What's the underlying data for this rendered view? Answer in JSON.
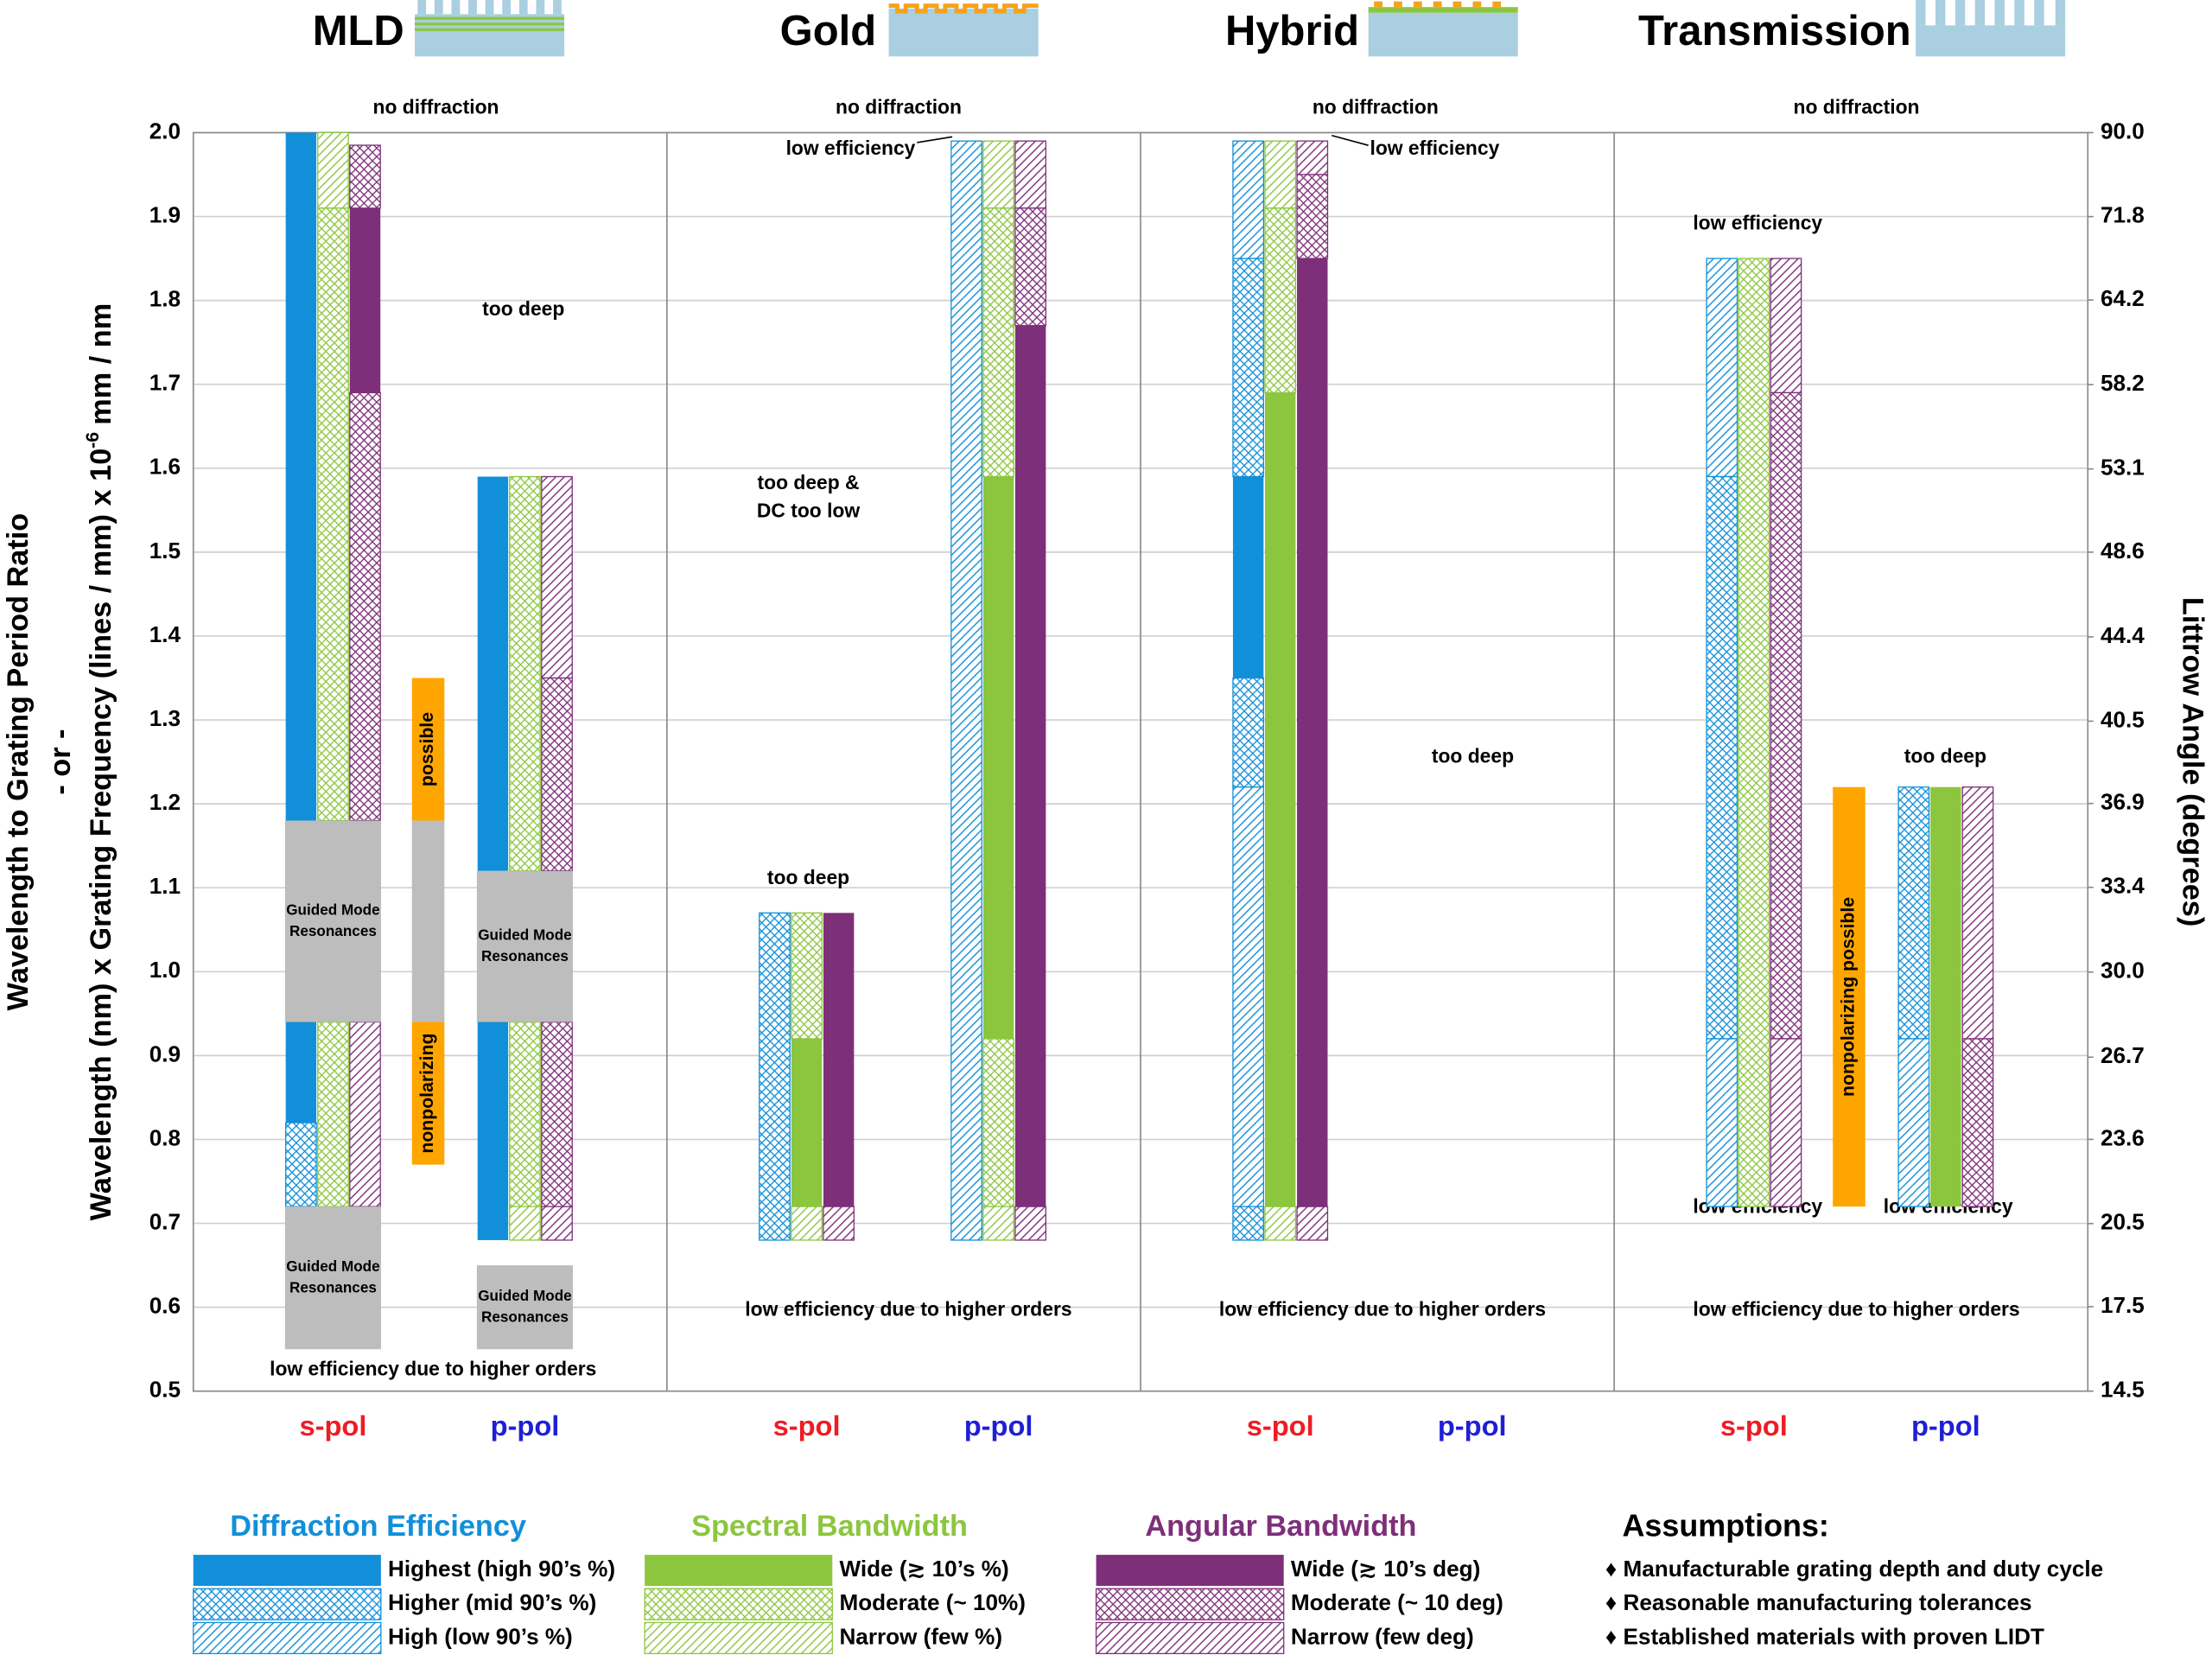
{
  "chart_data": {
    "type": "range_bar",
    "ylabel_lines": [
      "Wavelength to Grating Period Ratio",
      "- or -"
    ],
    "ylabel_formula": {
      "base": "Wavelength (nm) x Grating Frequency (lines / mm) x 10",
      "exponent": "-6",
      "unit": "mm / nm"
    },
    "y2label": "Littrow Angle (degrees)",
    "ylim": [
      0.5,
      2.0
    ],
    "yticks": [
      0.5,
      0.6,
      0.7,
      0.8,
      0.9,
      {
        "value": 1,
        "label": "1.0"
      },
      1.1,
      1.2,
      1.3,
      1.4,
      1.5,
      1.6,
      1.7,
      1.8,
      1.9,
      {
        "value": 2,
        "label": "2.0"
      }
    ],
    "y2scale": "sine",
    "y2lim": [
      14.5,
      90
    ],
    "y2ticks": [
      {
        "value": 90,
        "label": "90.0"
      },
      71.8,
      64.2,
      58.2,
      53.1,
      48.6,
      44.4,
      40.5,
      36.9,
      33.4,
      {
        "value": 30,
        "label": "30.0"
      },
      26.7,
      23.6,
      20.5,
      17.5,
      14.5
    ],
    "grid": true,
    "box_color": "#bdbdbd",
    "metrics": [
      {
        "name": "Diffraction Efficiency",
        "color": "#128fd9",
        "levels": [
          "Highest (high 90’s %)",
          "Higher (mid 90’s %)",
          "High (low 90’s %)"
        ]
      },
      {
        "name": "Spectral Bandwidth",
        "color": "#8cc63f",
        "levels": [
          "Wide (≳ 10’s %)",
          "Moderate (~ 10%)",
          "Narrow (few %)"
        ]
      },
      {
        "name": "Angular Bandwidth",
        "color": "#7e2f7a",
        "levels": [
          "Wide (≳ 10’s deg)",
          "Moderate (~ 10 deg)",
          "Narrow (few deg)"
        ]
      }
    ],
    "assumptions": {
      "title": "Assumptions:",
      "items": [
        "♦ Manufacturable grating depth and duty cycle",
        "♦ Reasonable manufacturing tolerances",
        "♦ Established materials with proven LIDT"
      ]
    },
    "panels": [
      {
        "title": "MLD",
        "annotations": [
          "no diffraction",
          "too deep",
          "low efficiency due to higher orders"
        ],
        "groups": [
          {
            "label": "s-pol",
            "color": "#ee1c25",
            "bars": [
              [
                {
                  "from": 1.18,
                  "to": 2.0,
                  "level": 0
                },
                {
                  "from": 0.82,
                  "to": 0.94,
                  "level": 0
                },
                {
                  "from": 0.72,
                  "to": 0.82,
                  "level": 1
                }
              ],
              [
                {
                  "from": 1.91,
                  "to": 2.0,
                  "level": 2
                },
                {
                  "from": 1.18,
                  "to": 1.91,
                  "level": 1
                },
                {
                  "from": 0.72,
                  "to": 0.94,
                  "level": 1
                }
              ],
              [
                {
                  "from": 1.91,
                  "to": 1.985,
                  "level": 1
                },
                {
                  "from": 1.69,
                  "to": 1.91,
                  "level": 0
                },
                {
                  "from": 1.18,
                  "to": 1.69,
                  "level": 1
                },
                {
                  "from": 0.72,
                  "to": 0.94,
                  "level": 2
                }
              ]
            ],
            "boxes": [
              {
                "from": 0.94,
                "to": 1.18,
                "lines": [
                  "Guided Mode",
                  "Resonances"
                ]
              },
              {
                "from": 0.55,
                "to": 0.72,
                "lines": [
                  "Guided Mode",
                  "Resonances"
                ]
              }
            ]
          },
          {
            "label": "p-pol",
            "color": "#1f1fd6",
            "bars": [
              [
                {
                  "from": 1.12,
                  "to": 1.59,
                  "level": 0
                },
                {
                  "from": 0.68,
                  "to": 0.94,
                  "level": 0
                }
              ],
              [
                {
                  "from": 1.12,
                  "to": 1.59,
                  "level": 1
                },
                {
                  "from": 0.72,
                  "to": 0.94,
                  "level": 1
                },
                {
                  "from": 0.68,
                  "to": 0.72,
                  "level": 2
                }
              ],
              [
                {
                  "from": 1.35,
                  "to": 1.59,
                  "level": 2
                },
                {
                  "from": 1.12,
                  "to": 1.35,
                  "level": 1
                },
                {
                  "from": 0.72,
                  "to": 0.94,
                  "level": 1
                },
                {
                  "from": 0.68,
                  "to": 0.72,
                  "level": 2
                }
              ]
            ],
            "boxes": [
              {
                "from": 0.94,
                "to": 1.12,
                "lines": [
                  "Guided Mode",
                  "Resonances"
                ]
              },
              {
                "from": 0.55,
                "to": 0.65,
                "lines": [
                  "Guided Mode",
                  "Resonances"
                ]
              }
            ]
          }
        ],
        "bands": [
          {
            "from": 1.18,
            "to": 1.35,
            "color": "#ffa500",
            "label": "possible"
          },
          {
            "from": 0.94,
            "to": 1.18,
            "color": "#bdbdbd"
          },
          {
            "from": 0.77,
            "to": 0.94,
            "color": "#ffa500",
            "label": "nonpolarizing"
          }
        ]
      },
      {
        "title": "Gold",
        "annotations": [
          "no diffraction",
          "low efficiency",
          "too deep &",
          "DC too low",
          "too deep",
          "low efficiency due to higher orders"
        ],
        "groups": [
          {
            "label": "s-pol",
            "color": "#ee1c25",
            "bars": [
              [
                {
                  "from": 0.68,
                  "to": 1.07,
                  "level": 1
                }
              ],
              [
                {
                  "from": 0.92,
                  "to": 1.07,
                  "level": 1
                },
                {
                  "from": 0.72,
                  "to": 0.92,
                  "level": 0
                },
                {
                  "from": 0.68,
                  "to": 0.72,
                  "level": 2
                }
              ],
              [
                {
                  "from": 0.72,
                  "to": 1.07,
                  "level": 0
                },
                {
                  "from": 0.68,
                  "to": 0.72,
                  "level": 2
                }
              ]
            ],
            "boxes": []
          },
          {
            "label": "p-pol",
            "color": "#1f1fd6",
            "bars": [
              [
                {
                  "from": 0.68,
                  "to": 1.99,
                  "level": 2
                }
              ],
              [
                {
                  "from": 1.91,
                  "to": 1.99,
                  "level": 2
                },
                {
                  "from": 1.59,
                  "to": 1.91,
                  "level": 1
                },
                {
                  "from": 0.92,
                  "to": 1.59,
                  "level": 0
                },
                {
                  "from": 0.72,
                  "to": 0.92,
                  "level": 1
                },
                {
                  "from": 0.68,
                  "to": 0.72,
                  "level": 2
                }
              ],
              [
                {
                  "from": 1.91,
                  "to": 1.99,
                  "level": 2
                },
                {
                  "from": 1.77,
                  "to": 1.91,
                  "level": 1
                },
                {
                  "from": 0.72,
                  "to": 1.77,
                  "level": 0
                },
                {
                  "from": 0.68,
                  "to": 0.72,
                  "level": 2
                }
              ]
            ],
            "boxes": []
          }
        ],
        "bands": []
      },
      {
        "title": "Hybrid",
        "annotations": [
          "no diffraction",
          "low efficiency",
          "too deep",
          "low efficiency due to higher orders"
        ],
        "groups": [
          {
            "label": "s-pol",
            "color": "#ee1c25",
            "bars": [
              [
                {
                  "from": 1.85,
                  "to": 1.99,
                  "level": 2
                },
                {
                  "from": 1.59,
                  "to": 1.85,
                  "level": 1
                },
                {
                  "from": 1.35,
                  "to": 1.59,
                  "level": 0
                },
                {
                  "from": 1.22,
                  "to": 1.35,
                  "level": 1
                },
                {
                  "from": 0.72,
                  "to": 1.22,
                  "level": 2
                },
                {
                  "from": 0.68,
                  "to": 0.72,
                  "level": 1
                }
              ],
              [
                {
                  "from": 1.91,
                  "to": 1.99,
                  "level": 2
                },
                {
                  "from": 1.69,
                  "to": 1.91,
                  "level": 1
                },
                {
                  "from": 0.72,
                  "to": 1.69,
                  "level": 0
                },
                {
                  "from": 0.68,
                  "to": 0.72,
                  "level": 2
                }
              ],
              [
                {
                  "from": 1.95,
                  "to": 1.99,
                  "level": 2
                },
                {
                  "from": 1.85,
                  "to": 1.95,
                  "level": 1
                },
                {
                  "from": 0.72,
                  "to": 1.85,
                  "level": 0
                },
                {
                  "from": 0.68,
                  "to": 0.72,
                  "level": 2
                }
              ]
            ],
            "boxes": []
          },
          {
            "label": "p-pol",
            "color": "#1f1fd6",
            "bars": [],
            "boxes": []
          }
        ],
        "bands": []
      },
      {
        "title": "Transmission",
        "annotations": [
          "no diffraction",
          "low efficiency",
          "too deep",
          "low efficiency",
          "low efficiency",
          "low efficiency due to higher orders"
        ],
        "groups": [
          {
            "label": "s-pol",
            "color": "#ee1c25",
            "bars": [
              [
                {
                  "from": 1.59,
                  "to": 1.85,
                  "level": 2
                },
                {
                  "from": 0.92,
                  "to": 1.59,
                  "level": 1
                },
                {
                  "from": 0.72,
                  "to": 0.92,
                  "level": 2
                }
              ],
              [
                {
                  "from": 0.72,
                  "to": 1.85,
                  "level": 1
                }
              ],
              [
                {
                  "from": 1.69,
                  "to": 1.85,
                  "level": 2
                },
                {
                  "from": 0.92,
                  "to": 1.69,
                  "level": 1
                },
                {
                  "from": 0.72,
                  "to": 0.92,
                  "level": 2
                }
              ]
            ],
            "boxes": []
          },
          {
            "label": "p-pol",
            "color": "#1f1fd6",
            "bars": [
              [
                {
                  "from": 0.92,
                  "to": 1.22,
                  "level": 1
                },
                {
                  "from": 0.72,
                  "to": 0.92,
                  "level": 2
                }
              ],
              [
                {
                  "from": 0.72,
                  "to": 1.22,
                  "level": 0
                }
              ],
              [
                {
                  "from": 0.92,
                  "to": 1.22,
                  "level": 2
                },
                {
                  "from": 0.72,
                  "to": 0.92,
                  "level": 1
                }
              ]
            ],
            "boxes": []
          }
        ],
        "bands": [
          {
            "from": 0.72,
            "to": 1.22,
            "color": "#ffa500",
            "label": "nonpolarizing possible"
          }
        ]
      }
    ]
  }
}
